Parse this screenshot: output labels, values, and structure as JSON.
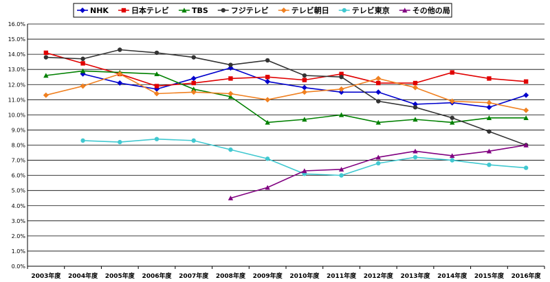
{
  "chart_data": {
    "type": "line",
    "title": "",
    "xlabel": "",
    "ylabel": "",
    "ylim": [
      0,
      16
    ],
    "y_ticks": [
      "0.0%",
      "1.0%",
      "2.0%",
      "3.0%",
      "4.0%",
      "5.0%",
      "6.0%",
      "7.0%",
      "8.0%",
      "9.0%",
      "10.0%",
      "11.0%",
      "12.0%",
      "13.0%",
      "14.0%",
      "15.0%",
      "16.0%"
    ],
    "categories": [
      "2003年度",
      "2004年度",
      "2005年度",
      "2006年度",
      "2007年度",
      "2008年度",
      "2009年度",
      "2010年度",
      "2011年度",
      "2012年度",
      "2013年度",
      "2014年度",
      "2015年度",
      "2016年度"
    ],
    "legend_position": "top",
    "series": [
      {
        "name": "NHK",
        "color": "#0000CC",
        "marker": "diamond",
        "values": [
          null,
          12.7,
          12.1,
          11.7,
          12.4,
          13.1,
          12.2,
          11.8,
          11.5,
          11.5,
          10.7,
          10.8,
          10.5,
          11.3
        ]
      },
      {
        "name": "日本テレビ",
        "color": "#E00000",
        "marker": "square",
        "values": [
          14.1,
          13.4,
          12.7,
          11.9,
          12.1,
          12.4,
          12.5,
          12.3,
          12.7,
          12.1,
          12.1,
          12.8,
          12.4,
          12.2
        ]
      },
      {
        "name": "TBS",
        "color": "#008000",
        "marker": "triangle",
        "values": [
          12.6,
          12.9,
          12.8,
          12.7,
          11.7,
          11.2,
          9.5,
          9.7,
          10.0,
          9.5,
          9.7,
          9.5,
          9.8,
          9.8
        ]
      },
      {
        "name": "フジテレビ",
        "color": "#333333",
        "marker": "circle",
        "values": [
          13.8,
          13.7,
          14.3,
          14.1,
          13.8,
          13.3,
          13.6,
          12.6,
          12.5,
          10.9,
          10.5,
          9.8,
          8.9,
          8.0
        ]
      },
      {
        "name": "テレビ朝日",
        "color": "#F08020",
        "marker": "diamond",
        "values": [
          11.3,
          11.9,
          12.7,
          11.4,
          11.5,
          11.4,
          11.0,
          11.5,
          11.7,
          12.4,
          11.8,
          10.9,
          10.8,
          10.3
        ]
      },
      {
        "name": "テレビ東京",
        "color": "#40C8D0",
        "marker": "circle",
        "values": [
          null,
          8.3,
          8.2,
          8.4,
          8.3,
          7.7,
          7.1,
          6.1,
          6.0,
          6.8,
          7.2,
          7.0,
          6.7,
          6.5
        ]
      },
      {
        "name": "その他の局",
        "color": "#800080",
        "marker": "triangle",
        "values": [
          null,
          null,
          null,
          null,
          null,
          4.5,
          5.2,
          6.3,
          6.4,
          7.2,
          7.6,
          7.3,
          7.6,
          8.0
        ]
      }
    ]
  }
}
